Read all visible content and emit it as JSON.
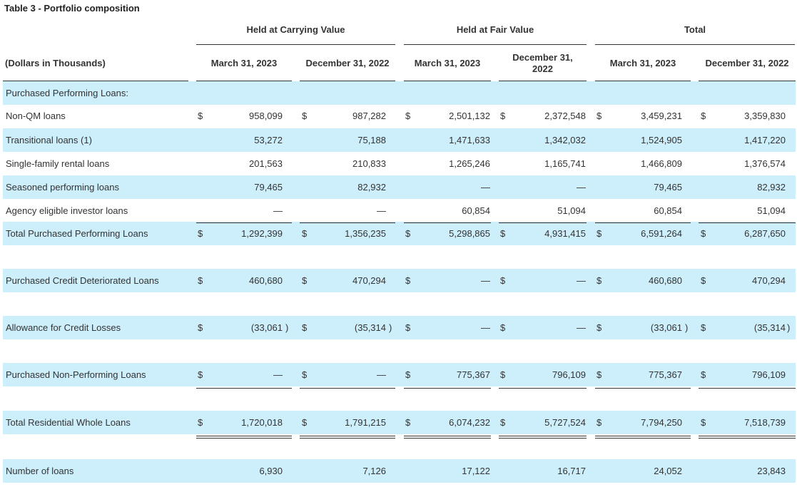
{
  "table": {
    "caption": "Table 3 - Portfolio composition",
    "groups": [
      "Held at Carrying Value",
      "Held at Fair Value",
      "Total"
    ],
    "headers": [
      "(Dollars in Thousands)",
      "March 31, 2023",
      "December 31, 2022",
      "March 31, 2023",
      "December 31,\n2022",
      "March 31, 2023",
      "December 31, 2022"
    ],
    "rows": [
      {
        "label": "Purchased Performing Loans:",
        "values": [],
        "dollar": false
      },
      {
        "label": "Non-QM loans",
        "values": [
          "958,099",
          "987,282",
          "2,501,132",
          "2,372,548",
          "3,459,231",
          "3,359,830"
        ],
        "dollar": true
      },
      {
        "label": "Transitional loans (1)",
        "values": [
          "53,272",
          "75,188",
          "1,471,633",
          "1,342,032",
          "1,524,905",
          "1,417,220"
        ],
        "dollar": false
      },
      {
        "label": "Single-family rental loans",
        "values": [
          "201,563",
          "210,833",
          "1,265,246",
          "1,165,741",
          "1,466,809",
          "1,376,574"
        ],
        "dollar": false
      },
      {
        "label": "Seasoned performing loans",
        "values": [
          "79,465",
          "82,932",
          "—",
          "—",
          "79,465",
          "82,932"
        ],
        "dollar": false
      },
      {
        "label": "Agency eligible investor loans",
        "values": [
          "—",
          "—",
          "60,854",
          "51,094",
          "60,854",
          "51,094"
        ],
        "dollar": false
      },
      {
        "label": "Total Purchased Performing Loans",
        "values": [
          "1,292,399",
          "1,356,235",
          "5,298,865",
          "4,931,415",
          "6,591,264",
          "6,287,650"
        ],
        "dollar": true
      },
      {
        "label": "Purchased Credit Deteriorated Loans",
        "values": [
          "460,680",
          "470,294",
          "—",
          "—",
          "460,680",
          "470,294"
        ],
        "dollar": true
      },
      {
        "label": "Allowance for Credit Losses",
        "values": [
          "(33,061",
          "(35,314",
          "—",
          "—",
          "(33,061",
          "(35,314"
        ],
        "dollar": true
      },
      {
        "label": "Purchased Non-Performing Loans",
        "values": [
          "—",
          "—",
          "775,367",
          "796,109",
          "775,367",
          "796,109"
        ],
        "dollar": true
      },
      {
        "label": "Total Residential Whole Loans",
        "values": [
          "1,720,018",
          "1,791,215",
          "6,074,232",
          "5,727,524",
          "7,794,250",
          "7,518,739"
        ],
        "dollar": true
      },
      {
        "label": "Number of loans",
        "values": [
          "6,930",
          "7,126",
          "17,122",
          "16,717",
          "24,052",
          "23,843"
        ],
        "dollar": false
      }
    ],
    "dollar_sign": "$",
    "close_paren": ")"
  },
  "colors": {
    "row_highlight": "#cdeefb",
    "text": "#333333",
    "rule": "#333333"
  }
}
